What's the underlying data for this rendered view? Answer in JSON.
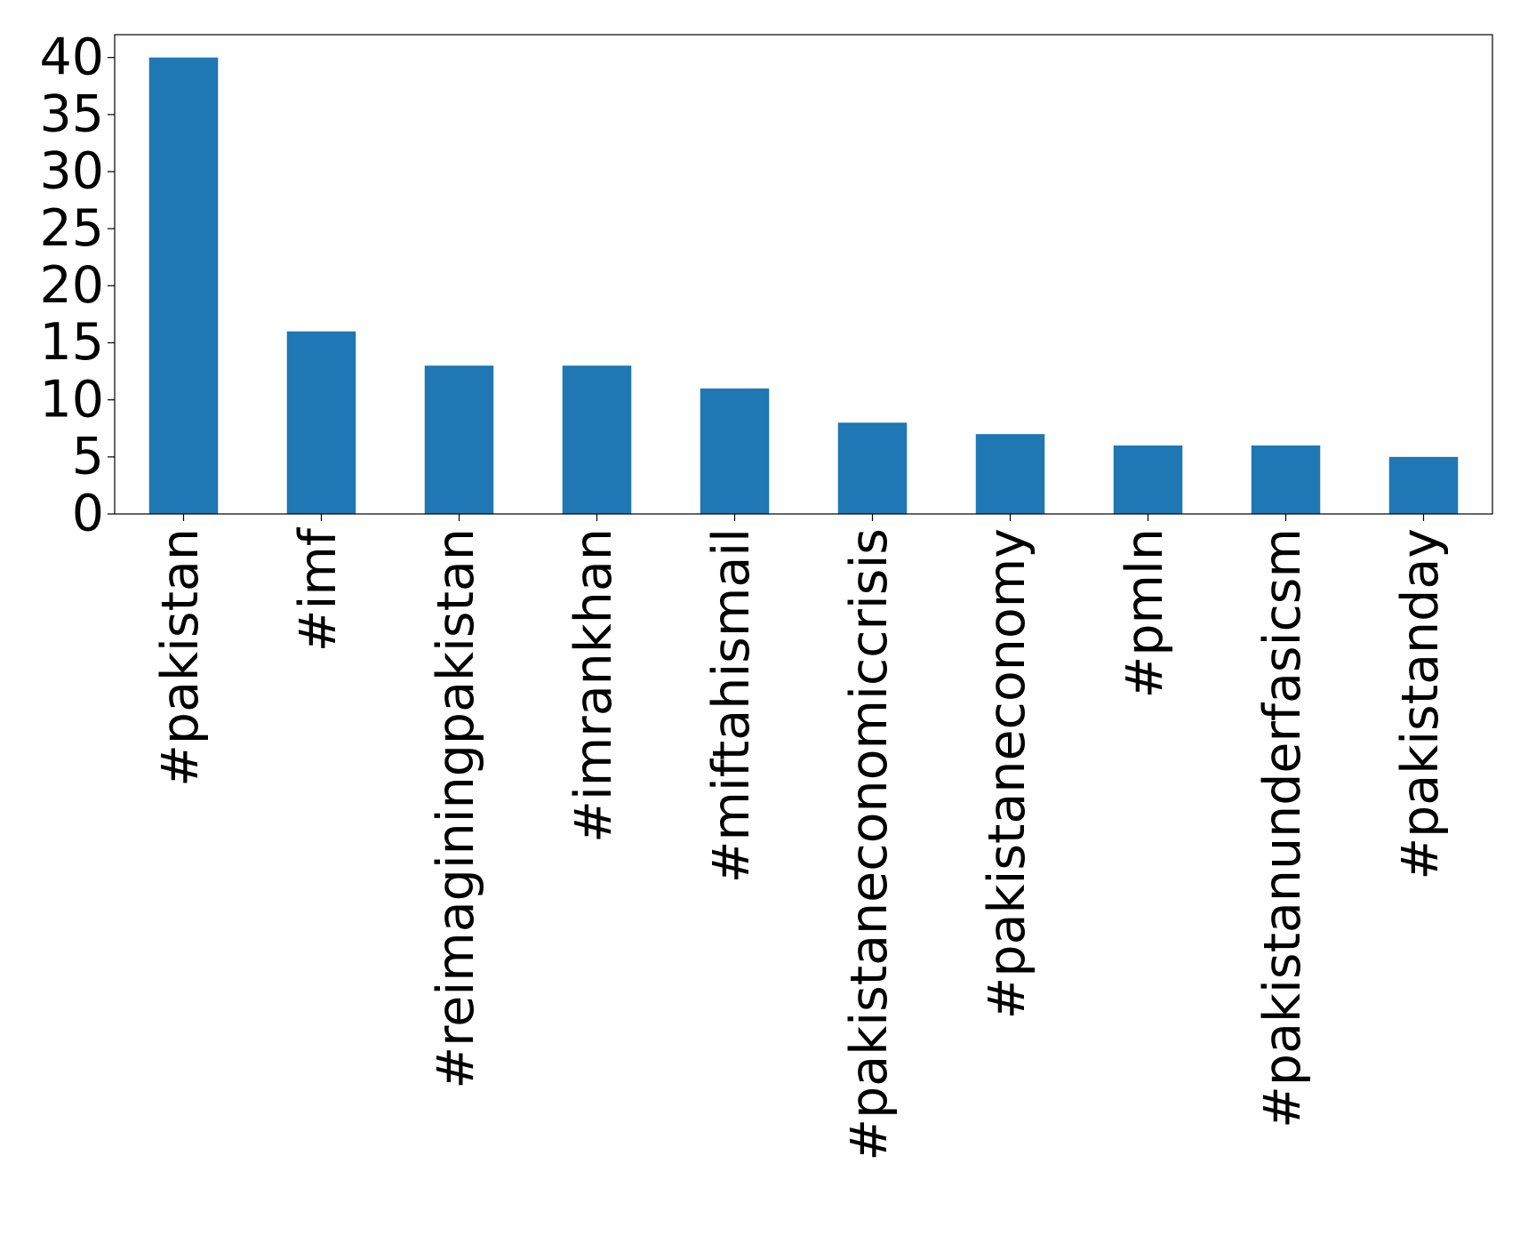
{
  "chart_data": {
    "type": "bar",
    "categories": [
      "#pakistan",
      "#imf",
      "#reimaginingpakistan",
      "#imrankhan",
      "#miftahismail",
      "#pakistaneconomiccrisis",
      "#pakistaneconomy",
      "#pmln",
      "#pakistanunderfasicsm",
      "#pakistanday"
    ],
    "values": [
      40,
      16,
      13,
      13,
      11,
      8,
      7,
      6,
      6,
      5
    ],
    "color": "#1f77b4",
    "ylim": [
      0,
      42
    ],
    "yticks": [
      0,
      5,
      10,
      15,
      20,
      25,
      30,
      35,
      40
    ],
    "grid": false
  }
}
